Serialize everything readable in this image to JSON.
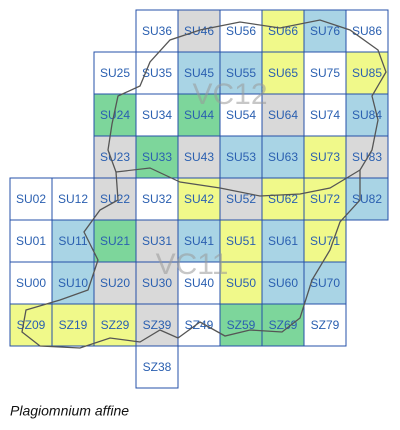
{
  "map": {
    "regions": [
      "VC12",
      "VC11"
    ],
    "caption": "Plagiomnium affine",
    "cells": [
      {
        "label": "SU36",
        "color": "#ffffff"
      },
      {
        "label": "SU46",
        "color": "#d9d9d9"
      },
      {
        "label": "SU56",
        "color": "#ffffff"
      },
      {
        "label": "SU66",
        "color": "#f0f98a"
      },
      {
        "label": "SU76",
        "color": "#a9d4e5"
      },
      {
        "label": "SU86",
        "color": "#ffffff"
      },
      {
        "label": "SU25",
        "color": "#ffffff"
      },
      {
        "label": "SU35",
        "color": "#ffffff"
      },
      {
        "label": "SU45",
        "color": "#a9d4e5"
      },
      {
        "label": "SU55",
        "color": "#a9d4e5"
      },
      {
        "label": "SU65",
        "color": "#f0f98a"
      },
      {
        "label": "SU75",
        "color": "#ffffff"
      },
      {
        "label": "SU85",
        "color": "#f0f98a"
      },
      {
        "label": "SU24",
        "color": "#7dd69b"
      },
      {
        "label": "SU34",
        "color": "#ffffff"
      },
      {
        "label": "SU44",
        "color": "#7dd69b"
      },
      {
        "label": "SU54",
        "color": "#ffffff"
      },
      {
        "label": "SU64",
        "color": "#d9d9d9"
      },
      {
        "label": "SU74",
        "color": "#ffffff"
      },
      {
        "label": "SU84",
        "color": "#a9d4e5"
      },
      {
        "label": "SU23",
        "color": "#d9d9d9"
      },
      {
        "label": "SU33",
        "color": "#7dd69b"
      },
      {
        "label": "SU43",
        "color": "#d9d9d9"
      },
      {
        "label": "SU53",
        "color": "#a9d4e5"
      },
      {
        "label": "SU63",
        "color": "#a9d4e5"
      },
      {
        "label": "SU73",
        "color": "#f0f98a"
      },
      {
        "label": "SU83",
        "color": "#d9d9d9"
      },
      {
        "label": "SU02",
        "color": "#ffffff"
      },
      {
        "label": "SU12",
        "color": "#ffffff"
      },
      {
        "label": "SU22",
        "color": "#d9d9d9"
      },
      {
        "label": "SU32",
        "color": "#ffffff"
      },
      {
        "label": "SU42",
        "color": "#f0f98a"
      },
      {
        "label": "SU52",
        "color": "#d9d9d9"
      },
      {
        "label": "SU62",
        "color": "#f0f98a"
      },
      {
        "label": "SU72",
        "color": "#f0f98a"
      },
      {
        "label": "SU82",
        "color": "#a9d4e5"
      },
      {
        "label": "SU01",
        "color": "#ffffff"
      },
      {
        "label": "SU11",
        "color": "#a9d4e5"
      },
      {
        "label": "SU21",
        "color": "#7dd69b"
      },
      {
        "label": "SU31",
        "color": "#d9d9d9"
      },
      {
        "label": "SU41",
        "color": "#a9d4e5"
      },
      {
        "label": "SU51",
        "color": "#f0f98a"
      },
      {
        "label": "SU61",
        "color": "#a9d4e5"
      },
      {
        "label": "SU71",
        "color": "#f0f98a"
      },
      {
        "label": "SU00",
        "color": "#ffffff"
      },
      {
        "label": "SU10",
        "color": "#a9d4e5"
      },
      {
        "label": "SU20",
        "color": "#d9d9d9"
      },
      {
        "label": "SU30",
        "color": "#d9d9d9"
      },
      {
        "label": "SU40",
        "color": "#ffffff"
      },
      {
        "label": "SU50",
        "color": "#f0f98a"
      },
      {
        "label": "SU60",
        "color": "#a9d4e5"
      },
      {
        "label": "SU70",
        "color": "#a9d4e5"
      },
      {
        "label": "SZ09",
        "color": "#f0f98a"
      },
      {
        "label": "SZ19",
        "color": "#f0f98a"
      },
      {
        "label": "SZ29",
        "color": "#f0f98a"
      },
      {
        "label": "SZ39",
        "color": "#d9d9d9"
      },
      {
        "label": "SZ49",
        "color": "#ffffff"
      },
      {
        "label": "SZ59",
        "color": "#7dd69b"
      },
      {
        "label": "SZ69",
        "color": "#7dd69b"
      },
      {
        "label": "SZ79",
        "color": "#ffffff"
      },
      {
        "label": "SZ38",
        "color": "#ffffff"
      }
    ]
  }
}
